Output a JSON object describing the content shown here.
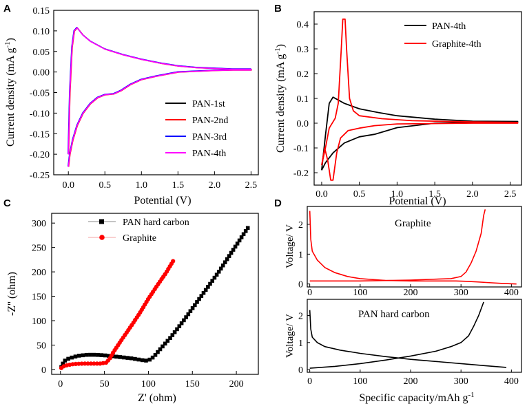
{
  "chart_data": [
    {
      "panel": "A",
      "type": "line",
      "xlabel": "Potential (V)",
      "ylabel": "Current density (mA g-1)",
      "ylabel_main": "Current density (mA g",
      "ylabel_sup": "-1",
      "ylabel_close": ")",
      "xlim": [
        -0.2,
        2.6
      ],
      "ylim": [
        -0.25,
        0.15
      ],
      "xticks": [
        0.0,
        0.5,
        1.0,
        1.5,
        2.0,
        2.5
      ],
      "xtick_labels": [
        "0.0",
        "0.5",
        "1.0",
        "1.5",
        "2.0",
        "2.5"
      ],
      "yticks": [
        -0.25,
        -0.2,
        -0.15,
        -0.1,
        -0.05,
        0.0,
        0.05,
        0.1,
        0.15
      ],
      "ytick_labels": [
        "-0.25",
        "-0.20",
        "-0.15",
        "-0.10",
        "-0.05",
        "0.00",
        "0.05",
        "0.10",
        "0.15"
      ],
      "legend": "lower-right",
      "series": [
        {
          "name": "PAN-1st",
          "color": "#000000"
        },
        {
          "name": "PAN-2nd",
          "color": "#ff0000"
        },
        {
          "name": "PAN-3rd",
          "color": "#0000ff"
        },
        {
          "name": "PAN-4th",
          "color": "#ff00ff"
        }
      ],
      "curve": [
        [
          0.0,
          -0.2
        ],
        [
          0.02,
          -0.05
        ],
        [
          0.05,
          0.06
        ],
        [
          0.08,
          0.1
        ],
        [
          0.12,
          0.108
        ],
        [
          0.2,
          0.09
        ],
        [
          0.3,
          0.075
        ],
        [
          0.5,
          0.056
        ],
        [
          0.75,
          0.042
        ],
        [
          1.0,
          0.031
        ],
        [
          1.25,
          0.022
        ],
        [
          1.5,
          0.015
        ],
        [
          1.75,
          0.011
        ],
        [
          2.0,
          0.009
        ],
        [
          2.25,
          0.007
        ],
        [
          2.5,
          0.007
        ],
        [
          2.5,
          0.005
        ],
        [
          2.25,
          0.005
        ],
        [
          2.0,
          0.004
        ],
        [
          1.5,
          0.0
        ],
        [
          1.2,
          -0.01
        ],
        [
          1.0,
          -0.018
        ],
        [
          0.85,
          -0.03
        ],
        [
          0.72,
          -0.045
        ],
        [
          0.62,
          -0.053
        ],
        [
          0.5,
          -0.055
        ],
        [
          0.4,
          -0.062
        ],
        [
          0.3,
          -0.077
        ],
        [
          0.2,
          -0.1
        ],
        [
          0.12,
          -0.13
        ],
        [
          0.06,
          -0.165
        ],
        [
          0.02,
          -0.2
        ],
        [
          0.0,
          -0.23
        ]
      ]
    },
    {
      "panel": "B",
      "type": "line",
      "xlabel": "Potential (V)",
      "ylabel": "Current density (mA g-1)",
      "ylabel_main": "Current density (mA g",
      "ylabel_sup": "-1",
      "ylabel_close": ")",
      "xlim": [
        -0.1,
        2.65
      ],
      "ylim": [
        -0.25,
        0.45
      ],
      "xticks": [
        0.0,
        0.5,
        1.0,
        1.5,
        2.0,
        2.5
      ],
      "xtick_labels": [
        "0.0",
        "0.5",
        "1.0",
        "1.5",
        "2.0",
        "2.5"
      ],
      "yticks": [
        -0.2,
        -0.1,
        0.0,
        0.1,
        0.2,
        0.3,
        0.4
      ],
      "ytick_labels": [
        "-0.2",
        "-0.1",
        "0.0",
        "0.1",
        "0.2",
        "0.3",
        "0.4"
      ],
      "legend": "top-right",
      "series": [
        {
          "name": "PAN-4th",
          "color": "#000000",
          "points": [
            [
              0.0,
              -0.19
            ],
            [
              0.05,
              -0.05
            ],
            [
              0.1,
              0.08
            ],
            [
              0.15,
              0.105
            ],
            [
              0.3,
              0.08
            ],
            [
              0.5,
              0.058
            ],
            [
              0.75,
              0.043
            ],
            [
              1.0,
              0.03
            ],
            [
              1.5,
              0.016
            ],
            [
              2.0,
              0.008
            ],
            [
              2.6,
              0.007
            ],
            [
              2.6,
              0.005
            ],
            [
              2.0,
              0.004
            ],
            [
              1.5,
              0.0
            ],
            [
              1.0,
              -0.018
            ],
            [
              0.7,
              -0.045
            ],
            [
              0.5,
              -0.055
            ],
            [
              0.3,
              -0.08
            ],
            [
              0.15,
              -0.12
            ],
            [
              0.05,
              -0.16
            ],
            [
              0.0,
              -0.19
            ]
          ]
        },
        {
          "name": "Graphite-4th",
          "color": "#ff0000",
          "points": [
            [
              0.0,
              -0.17
            ],
            [
              0.05,
              -0.1
            ],
            [
              0.1,
              -0.02
            ],
            [
              0.18,
              0.02
            ],
            [
              0.22,
              0.08
            ],
            [
              0.26,
              0.3
            ],
            [
              0.28,
              0.42
            ],
            [
              0.31,
              0.42
            ],
            [
              0.33,
              0.3
            ],
            [
              0.37,
              0.1
            ],
            [
              0.42,
              0.05
            ],
            [
              0.5,
              0.03
            ],
            [
              0.8,
              0.018
            ],
            [
              1.2,
              0.01
            ],
            [
              2.0,
              0.005
            ],
            [
              2.6,
              0.003
            ],
            [
              2.6,
              0.0
            ],
            [
              2.0,
              0.0
            ],
            [
              1.0,
              -0.003
            ],
            [
              0.7,
              -0.01
            ],
            [
              0.5,
              -0.02
            ],
            [
              0.35,
              -0.03
            ],
            [
              0.25,
              -0.06
            ],
            [
              0.2,
              -0.12
            ],
            [
              0.15,
              -0.23
            ],
            [
              0.12,
              -0.23
            ],
            [
              0.08,
              -0.15
            ],
            [
              0.04,
              -0.1
            ],
            [
              0.0,
              -0.17
            ]
          ]
        }
      ]
    },
    {
      "panel": "C",
      "type": "scatter",
      "xlabel": "Z' (ohm)",
      "ylabel": "-Z'' (ohm)",
      "xlim": [
        -10,
        225
      ],
      "ylim": [
        -10,
        320
      ],
      "xticks": [
        0,
        50,
        100,
        150,
        200
      ],
      "xtick_labels": [
        "0",
        "50",
        "100",
        "150",
        "200"
      ],
      "yticks": [
        0,
        50,
        100,
        150,
        200,
        250,
        300
      ],
      "ytick_labels": [
        "0",
        "50",
        "100",
        "150",
        "200",
        "250",
        "300"
      ],
      "legend": "top-left",
      "series": [
        {
          "name": "PAN hard carbon",
          "color": "#000000",
          "anchors": [
            [
              1,
              5
            ],
            [
              2,
              10
            ],
            [
              5,
              18
            ],
            [
              10,
              23
            ],
            [
              20,
              28
            ],
            [
              30,
              30
            ],
            [
              40,
              30
            ],
            [
              50,
              29
            ],
            [
              60,
              27
            ],
            [
              70,
              25
            ],
            [
              80,
              23
            ],
            [
              90,
              20
            ],
            [
              97,
              18
            ],
            [
              103,
              21
            ],
            [
              108,
              30
            ],
            [
              115,
              45
            ],
            [
              125,
              65
            ],
            [
              140,
              100
            ],
            [
              160,
              150
            ],
            [
              180,
              200
            ],
            [
              200,
              255
            ],
            [
              213,
              290
            ]
          ]
        },
        {
          "name": "Graphite",
          "color": "#ff0000",
          "anchors": [
            [
              1,
              3
            ],
            [
              3,
              6
            ],
            [
              8,
              9
            ],
            [
              15,
              11
            ],
            [
              25,
              12
            ],
            [
              35,
              12
            ],
            [
              45,
              12
            ],
            [
              52,
              14
            ],
            [
              56,
              22
            ],
            [
              60,
              35
            ],
            [
              70,
              62
            ],
            [
              80,
              88
            ],
            [
              90,
              115
            ],
            [
              100,
              145
            ],
            [
              110,
              172
            ],
            [
              120,
              198
            ],
            [
              128,
              222
            ]
          ]
        }
      ]
    },
    {
      "panel": "D",
      "type": "line",
      "xlabel": "Specific capacity/mAh g-1",
      "xlabel_main": "Specific capacity/mAh g",
      "xlabel_sup": "-1",
      "ylabel": "Voltage/ V",
      "xlim": [
        -5,
        420
      ],
      "xticks": [
        0,
        100,
        200,
        300,
        400
      ],
      "xtick_labels": [
        "0",
        "100",
        "200",
        "300",
        "400"
      ],
      "subplots": [
        {
          "name": "Graphite",
          "color": "#ff0000",
          "ylim": [
            -0.1,
            2.6
          ],
          "yticks": [
            0,
            1,
            2
          ],
          "ytick_labels": [
            "0",
            "1",
            "2"
          ],
          "discharge": [
            [
              0,
              2.45
            ],
            [
              2,
              1.5
            ],
            [
              5,
              1.1
            ],
            [
              15,
              0.8
            ],
            [
              30,
              0.55
            ],
            [
              50,
              0.38
            ],
            [
              75,
              0.25
            ],
            [
              100,
              0.18
            ],
            [
              150,
              0.12
            ],
            [
              200,
              0.1
            ],
            [
              250,
              0.1
            ],
            [
              290,
              0.1
            ],
            [
              310,
              0.09
            ],
            [
              330,
              0.07
            ],
            [
              350,
              0.05
            ]
          ],
          "charge": [
            [
              0,
              0.1
            ],
            [
              100,
              0.1
            ],
            [
              200,
              0.13
            ],
            [
              280,
              0.18
            ],
            [
              300,
              0.25
            ],
            [
              310,
              0.4
            ],
            [
              320,
              0.7
            ],
            [
              330,
              1.1
            ],
            [
              340,
              1.7
            ],
            [
              345,
              2.3
            ],
            [
              348,
              2.5
            ]
          ],
          "tail": [
            [
              350,
              0.05
            ],
            [
              380,
              0.02
            ],
            [
              410,
              0.0
            ]
          ]
        },
        {
          "name": "PAN hard carbon",
          "color": "#000000",
          "ylim": [
            -0.1,
            2.6
          ],
          "yticks": [
            0,
            1,
            2
          ],
          "ytick_labels": [
            "0",
            "1",
            "2"
          ],
          "discharge": [
            [
              0,
              2.2
            ],
            [
              2,
              1.5
            ],
            [
              5,
              1.2
            ],
            [
              15,
              1.0
            ],
            [
              30,
              0.85
            ],
            [
              60,
              0.72
            ],
            [
              100,
              0.6
            ],
            [
              150,
              0.48
            ],
            [
              200,
              0.38
            ],
            [
              250,
              0.3
            ],
            [
              300,
              0.22
            ],
            [
              350,
              0.14
            ],
            [
              390,
              0.08
            ]
          ],
          "charge": [
            [
              0,
              0.05
            ],
            [
              50,
              0.12
            ],
            [
              100,
              0.22
            ],
            [
              150,
              0.35
            ],
            [
              200,
              0.5
            ],
            [
              250,
              0.68
            ],
            [
              280,
              0.85
            ],
            [
              300,
              1.0
            ],
            [
              315,
              1.25
            ],
            [
              325,
              1.6
            ],
            [
              335,
              2.0
            ],
            [
              345,
              2.5
            ]
          ]
        }
      ]
    }
  ]
}
